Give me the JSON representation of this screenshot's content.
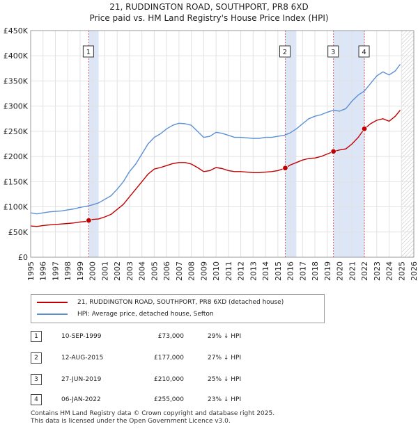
{
  "title": "21, RUDDINGTON ROAD, SOUTHPORT, PR8 6XD",
  "subtitle": "Price paid vs. HM Land Registry's House Price Index (HPI)",
  "chart_data": {
    "type": "line",
    "xlim": [
      1995,
      2026
    ],
    "ylim": [
      0,
      450000
    ],
    "y_ticks": [
      {
        "value": 0,
        "label": "£0"
      },
      {
        "value": 50000,
        "label": "£50K"
      },
      {
        "value": 100000,
        "label": "£100K"
      },
      {
        "value": 150000,
        "label": "£150K"
      },
      {
        "value": 200000,
        "label": "£200K"
      },
      {
        "value": 250000,
        "label": "£250K"
      },
      {
        "value": 300000,
        "label": "£300K"
      },
      {
        "value": 350000,
        "label": "£350K"
      },
      {
        "value": 400000,
        "label": "£400K"
      },
      {
        "value": 450000,
        "label": "£450K"
      }
    ],
    "x_ticks": [
      "1995",
      "1996",
      "1997",
      "1998",
      "1999",
      "2000",
      "2001",
      "2002",
      "2003",
      "2004",
      "2005",
      "2006",
      "2007",
      "2008",
      "2009",
      "2010",
      "2011",
      "2012",
      "2013",
      "2014",
      "2015",
      "2016",
      "2017",
      "2018",
      "2019",
      "2020",
      "2021",
      "2022",
      "2023",
      "2024",
      "2025",
      "2026"
    ],
    "grid": true,
    "shaded_spans": [
      [
        1999.7,
        2000.5
      ],
      [
        2015.6,
        2016.5
      ],
      [
        2019.5,
        2022.0
      ]
    ],
    "future_hatch_from": 2025.0,
    "series": [
      {
        "name": "HPI: Average price, detached house, Sefton",
        "color": "#5b8fd4",
        "x": [
          1995.0,
          1995.5,
          1996.0,
          1996.5,
          1997.0,
          1997.5,
          1998.0,
          1998.5,
          1999.0,
          1999.5,
          2000.0,
          2000.5,
          2001.0,
          2001.5,
          2002.0,
          2002.5,
          2003.0,
          2003.5,
          2004.0,
          2004.5,
          2005.0,
          2005.5,
          2006.0,
          2006.5,
          2007.0,
          2007.5,
          2008.0,
          2008.5,
          2009.0,
          2009.5,
          2010.0,
          2010.5,
          2011.0,
          2011.5,
          2012.0,
          2012.5,
          2013.0,
          2013.5,
          2014.0,
          2014.5,
          2015.0,
          2015.5,
          2016.0,
          2016.5,
          2017.0,
          2017.5,
          2018.0,
          2018.5,
          2019.0,
          2019.5,
          2020.0,
          2020.5,
          2021.0,
          2021.5,
          2022.0,
          2022.5,
          2023.0,
          2023.5,
          2024.0,
          2024.5,
          2024.9
        ],
        "values": [
          88000,
          86000,
          88000,
          90000,
          91000,
          92000,
          94000,
          96000,
          99000,
          101000,
          104000,
          108000,
          115000,
          122000,
          135000,
          150000,
          170000,
          185000,
          205000,
          225000,
          238000,
          245000,
          255000,
          262000,
          266000,
          265000,
          262000,
          250000,
          238000,
          240000,
          248000,
          246000,
          242000,
          238000,
          238000,
          237000,
          236000,
          236000,
          238000,
          238000,
          240000,
          242000,
          247000,
          255000,
          265000,
          275000,
          280000,
          283000,
          288000,
          292000,
          290000,
          295000,
          310000,
          322000,
          330000,
          345000,
          360000,
          368000,
          362000,
          370000,
          383000
        ]
      },
      {
        "name": "21, RUDDINGTON ROAD, SOUTHPORT, PR8 6XD (detached house)",
        "color": "#c00000",
        "x": [
          1995.0,
          1995.5,
          1996.0,
          1996.5,
          1997.0,
          1997.5,
          1998.0,
          1998.5,
          1999.0,
          1999.5,
          1999.7,
          2000.0,
          2000.5,
          2001.0,
          2001.5,
          2002.0,
          2002.5,
          2003.0,
          2003.5,
          2004.0,
          2004.5,
          2005.0,
          2005.5,
          2006.0,
          2006.5,
          2007.0,
          2007.5,
          2008.0,
          2008.5,
          2009.0,
          2009.5,
          2010.0,
          2010.5,
          2011.0,
          2011.5,
          2012.0,
          2012.5,
          2013.0,
          2013.5,
          2014.0,
          2014.5,
          2015.0,
          2015.6,
          2016.0,
          2016.5,
          2017.0,
          2017.5,
          2018.0,
          2018.5,
          2019.0,
          2019.5,
          2020.0,
          2020.5,
          2021.0,
          2021.5,
          2022.0,
          2022.5,
          2023.0,
          2023.5,
          2024.0,
          2024.5,
          2024.9
        ],
        "values": [
          62000,
          61000,
          63000,
          64000,
          65000,
          66000,
          67000,
          68000,
          70000,
          71000,
          73000,
          75000,
          76000,
          80000,
          85000,
          95000,
          105000,
          120000,
          135000,
          150000,
          165000,
          175000,
          178000,
          182000,
          186000,
          188000,
          188000,
          185000,
          178000,
          170000,
          172000,
          178000,
          176000,
          172000,
          170000,
          170000,
          169000,
          168000,
          168000,
          169000,
          170000,
          172000,
          177000,
          183000,
          188000,
          193000,
          196000,
          197000,
          200000,
          205000,
          210000,
          213000,
          215000,
          225000,
          238000,
          255000,
          265000,
          272000,
          275000,
          270000,
          280000,
          292000
        ]
      }
    ],
    "sales_markers": [
      {
        "n": "1",
        "x": 1999.7,
        "value": 73000
      },
      {
        "n": "2",
        "x": 2015.6,
        "value": 177000
      },
      {
        "n": "3",
        "x": 2019.5,
        "value": 210000
      },
      {
        "n": "4",
        "x": 2022.0,
        "value": 255000
      }
    ]
  },
  "legend": {
    "property": "21, RUDDINGTON ROAD, SOUTHPORT, PR8 6XD (detached house)",
    "hpi": "HPI: Average price, detached house, Sefton",
    "property_color": "#c00000",
    "hpi_color": "#5b8fd4"
  },
  "sales": [
    {
      "n": "1",
      "date": "10-SEP-1999",
      "price": "£73,000",
      "hpi": "29% ↓ HPI"
    },
    {
      "n": "2",
      "date": "12-AUG-2015",
      "price": "£177,000",
      "hpi": "27% ↓ HPI"
    },
    {
      "n": "3",
      "date": "27-JUN-2019",
      "price": "£210,000",
      "hpi": "25% ↓ HPI"
    },
    {
      "n": "4",
      "date": "06-JAN-2022",
      "price": "£255,000",
      "hpi": "23% ↓ HPI"
    }
  ],
  "footer": {
    "line1": "Contains HM Land Registry data © Crown copyright and database right 2025.",
    "line2": "This data is licensed under the Open Government Licence v3.0."
  }
}
